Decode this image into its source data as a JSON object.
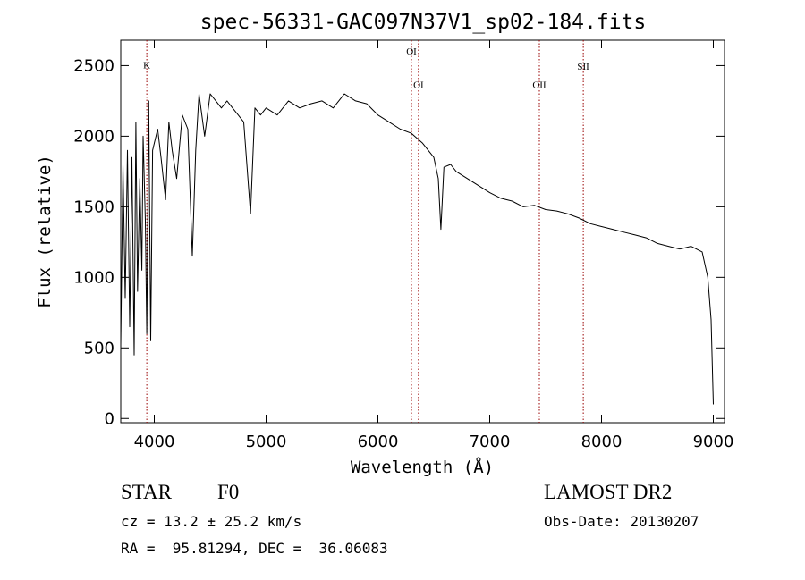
{
  "chart_data": {
    "type": "line",
    "title": "spec-56331-GAC097N37V1_sp02-184.fits",
    "xlabel": "Wavelength (Å)",
    "ylabel": "Flux (relative)",
    "xlim": [
      3700,
      9100
    ],
    "ylim": [
      -30,
      2680
    ],
    "xticks": [
      4000,
      5000,
      6000,
      7000,
      8000,
      9000
    ],
    "yticks": [
      0,
      500,
      1000,
      1500,
      2000,
      2500
    ],
    "xtick_labels": [
      "4000",
      "5000",
      "6000",
      "7000",
      "8000",
      "9000"
    ],
    "ytick_labels": [
      "0",
      "500",
      "1000",
      "1500",
      "2000",
      "2500"
    ],
    "grid": false,
    "series": [
      {
        "x": [
          3700,
          3720,
          3740,
          3760,
          3780,
          3800,
          3820,
          3835,
          3850,
          3870,
          3889,
          3900,
          3920,
          3933,
          3950,
          3968,
          3985,
          4000,
          4030,
          4060,
          4101,
          4130,
          4160,
          4200,
          4250,
          4300,
          4340,
          4370,
          4400,
          4450,
          4500,
          4550,
          4600,
          4650,
          4700,
          4750,
          4800,
          4861,
          4900,
          4950,
          5000,
          5100,
          5200,
          5300,
          5400,
          5500,
          5600,
          5700,
          5800,
          5900,
          6000,
          6100,
          6200,
          6300,
          6400,
          6500,
          6540,
          6563,
          6590,
          6650,
          6700,
          6800,
          6900,
          7000,
          7100,
          7200,
          7300,
          7400,
          7500,
          7600,
          7700,
          7800,
          7900,
          8000,
          8100,
          8200,
          8300,
          8400,
          8500,
          8600,
          8700,
          8800,
          8900,
          8950,
          8980,
          9000
        ],
        "y": [
          520,
          1800,
          850,
          1900,
          650,
          1850,
          450,
          2100,
          900,
          1700,
          1050,
          2000,
          1400,
          600,
          2250,
          550,
          1900,
          1950,
          2050,
          1850,
          1550,
          2100,
          1900,
          1700,
          2150,
          2050,
          1150,
          1900,
          2300,
          2000,
          2300,
          2250,
          2200,
          2250,
          2200,
          2150,
          2100,
          1450,
          2200,
          2150,
          2200,
          2150,
          2250,
          2200,
          2230,
          2250,
          2200,
          2300,
          2250,
          2230,
          2150,
          2100,
          2050,
          2020,
          1950,
          1850,
          1700,
          1340,
          1780,
          1800,
          1750,
          1700,
          1650,
          1600,
          1560,
          1540,
          1500,
          1510,
          1480,
          1470,
          1450,
          1420,
          1380,
          1360,
          1340,
          1320,
          1300,
          1280,
          1240,
          1220,
          1200,
          1220,
          1180,
          1000,
          700,
          100
        ]
      }
    ],
    "line_markers": [
      {
        "label": "K",
        "x": 3933,
        "label_level": 2480
      },
      {
        "label": "OI",
        "x": 6300,
        "label_level": 2580
      },
      {
        "label": "OI",
        "x": 6363,
        "label_level": 2340
      },
      {
        "label": "OII",
        "x": 7444,
        "label_level": 2340
      },
      {
        "label": "SII",
        "x": 7837,
        "label_level": 2470
      }
    ]
  },
  "footer": {
    "class_label": "STAR",
    "subclass": "F0",
    "survey": "LAMOST DR2",
    "cz": "cz = 13.2 ± 25.2 km/s",
    "obs_date": "Obs-Date: 20130207",
    "coords": "RA =  95.81294, DEC =  36.06083"
  },
  "colors": {
    "line": "#000000",
    "marker": "#990000",
    "axes": "#000000"
  }
}
